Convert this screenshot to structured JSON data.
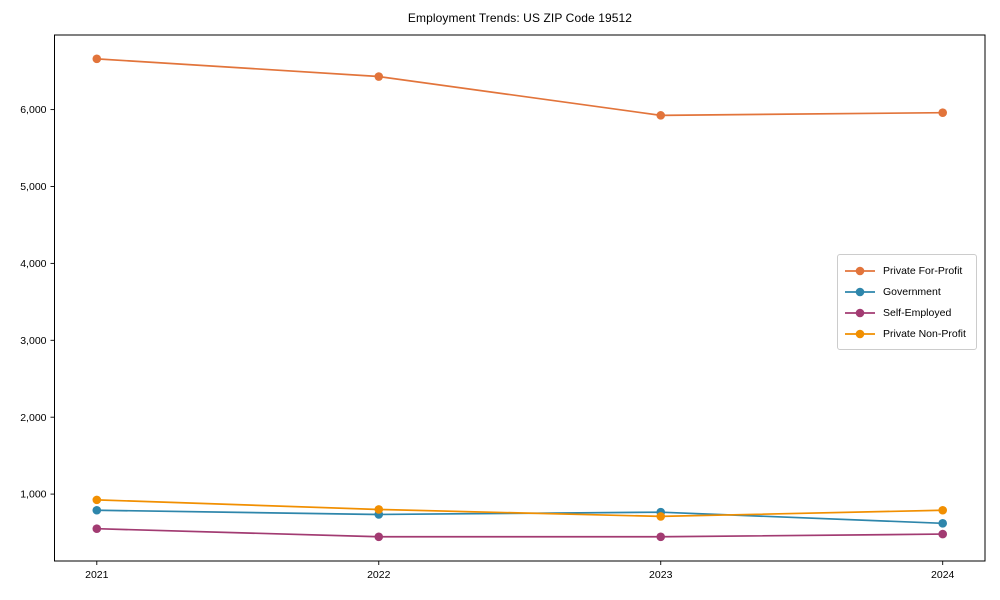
{
  "chart_data": {
    "type": "line",
    "title": "Employment Trends: US ZIP Code 19512",
    "xlabel": "",
    "ylabel": "",
    "x": [
      2021,
      2022,
      2023,
      2024
    ],
    "xtick_labels": [
      "2021",
      "2022",
      "2023",
      "2024"
    ],
    "yticks": [
      1000,
      2000,
      3000,
      4000,
      5000,
      6000
    ],
    "ytick_labels": [
      "1,000",
      "2,000",
      "3,000",
      "4,000",
      "5,000",
      "6,000"
    ],
    "xlim": [
      2020.85,
      2024.15
    ],
    "ylim": [
      130,
      6970
    ],
    "grid": false,
    "background": "#ffffff",
    "axis_color": "#000000",
    "legend": {
      "position": "middle-right",
      "border_color": "#cccccc",
      "background": "#ffffff"
    },
    "series": [
      {
        "name": "Private For-Profit",
        "color": "#E2743B",
        "values": [
          6660,
          6430,
          5925,
          5960
        ]
      },
      {
        "name": "Government",
        "color": "#2E86AB",
        "values": [
          790,
          735,
          765,
          620
        ]
      },
      {
        "name": "Self-Employed",
        "color": "#A23B72",
        "values": [
          550,
          445,
          445,
          480
        ]
      },
      {
        "name": "Private Non-Profit",
        "color": "#F18F01",
        "values": [
          925,
          800,
          710,
          790
        ]
      }
    ]
  }
}
